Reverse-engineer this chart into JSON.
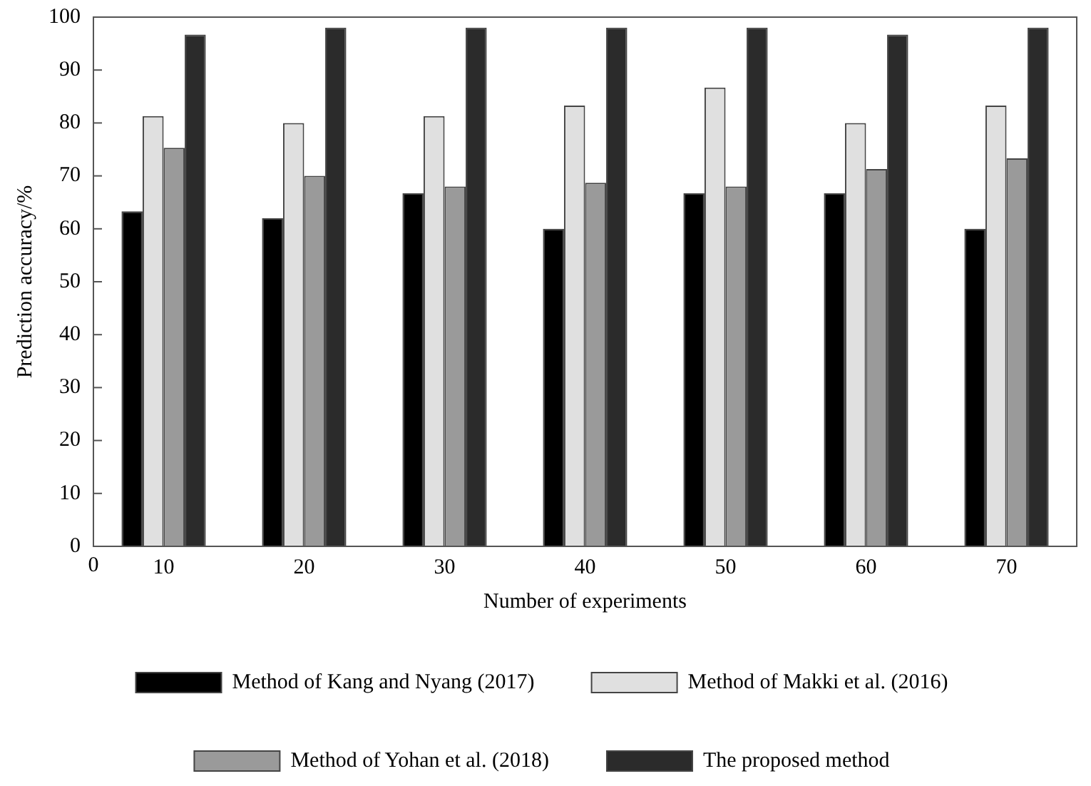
{
  "chart_data": {
    "type": "bar",
    "xlabel": "Number of experiments",
    "ylabel": "Prediction accuracy/%",
    "categories": [
      "10",
      "20",
      "30",
      "40",
      "50",
      "60",
      "70"
    ],
    "series": [
      {
        "name": "Method of Kang and Nyang (2017)",
        "color": "#000000",
        "values": [
          63.3,
          62,
          66.7,
          60,
          66.7,
          66.7,
          60
        ]
      },
      {
        "name": "Method of Makki et al. (2016)",
        "color": "#e0e0e0",
        "values": [
          81.3,
          80,
          81.3,
          83.3,
          86.7,
          80,
          83.3
        ]
      },
      {
        "name": "Method of Yohan et al. (2018)",
        "color": "#9a9a9a",
        "values": [
          75.3,
          70,
          68,
          68.7,
          68,
          71.3,
          73.3
        ]
      },
      {
        "name": "The proposed method",
        "color": "#2b2b2b",
        "values": [
          96.7,
          98,
          98,
          98,
          98,
          96.7,
          98
        ]
      }
    ],
    "ylim": [
      0,
      100
    ],
    "yticks": [
      0,
      10,
      20,
      30,
      40,
      50,
      60,
      70,
      80,
      90,
      100
    ],
    "annotations": [
      "0"
    ],
    "grid": false,
    "legend": "bottom"
  }
}
